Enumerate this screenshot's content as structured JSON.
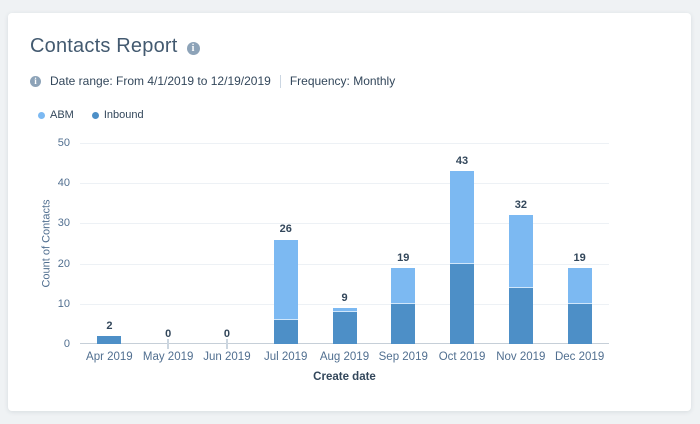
{
  "page": {
    "background_color": "#eff2f4",
    "card_color": "#ffffff"
  },
  "header": {
    "title": "Contacts Report",
    "info_icon_glyph": "i"
  },
  "meta": {
    "info_icon_glyph": "i",
    "date_range_label": "Date range: From 4/1/2019 to 12/19/2019",
    "frequency_label": "Frequency: Monthly"
  },
  "legend": {
    "items": [
      {
        "label": "ABM",
        "color": "#7cb9f2"
      },
      {
        "label": "Inbound",
        "color": "#4d8fc7"
      }
    ]
  },
  "chart_data": {
    "type": "bar",
    "stacked": true,
    "title": "Contacts Report",
    "categories": [
      "Apr 2019",
      "May 2019",
      "Jun 2019",
      "Jul 2019",
      "Aug 2019",
      "Sep 2019",
      "Oct 2019",
      "Nov 2019",
      "Dec 2019"
    ],
    "series": [
      {
        "name": "Inbound",
        "color": "#4d8fc7",
        "values": [
          2,
          0,
          0,
          6,
          8,
          10,
          20,
          14,
          10
        ]
      },
      {
        "name": "ABM",
        "color": "#7cb9f2",
        "values": [
          0,
          0,
          0,
          20,
          1,
          9,
          23,
          18,
          9
        ]
      }
    ],
    "totals": [
      2,
      0,
      0,
      26,
      9,
      19,
      43,
      32,
      19
    ],
    "xlabel": "Create date",
    "ylabel": "Count of Contacts",
    "ylim": [
      0,
      50
    ],
    "yticks": [
      0,
      10,
      20,
      30,
      40,
      50
    ],
    "grid": true,
    "legend_position": "top-left"
  }
}
